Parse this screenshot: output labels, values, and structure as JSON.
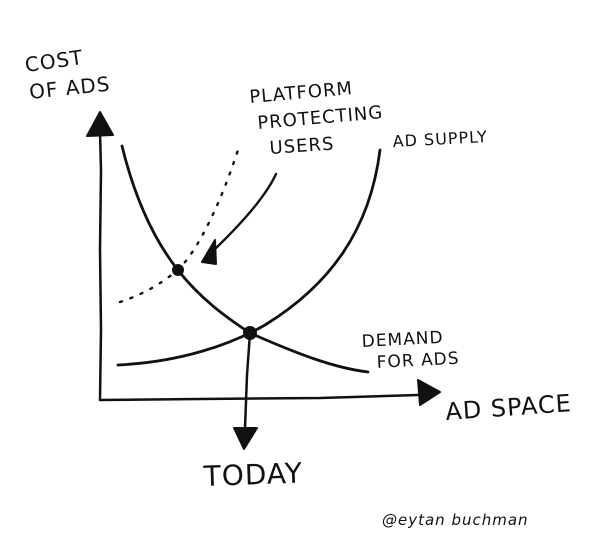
{
  "diagram": {
    "y_axis_label_line1": "COST",
    "y_axis_label_line2": "OF ADS",
    "x_axis_label": "AD SPACE",
    "platform_label_line1": "PLATFORM",
    "platform_label_line2": "PROTECTING",
    "platform_label_line3": "USERS",
    "supply_label": "AD SUPPLY",
    "demand_label_line1": "DEMAND",
    "demand_label_line2": "FOR ADS",
    "today_label": "TODAY",
    "signature": "@eytan buchman"
  },
  "colors": {
    "ink": "#111111",
    "background": "#ffffff"
  }
}
